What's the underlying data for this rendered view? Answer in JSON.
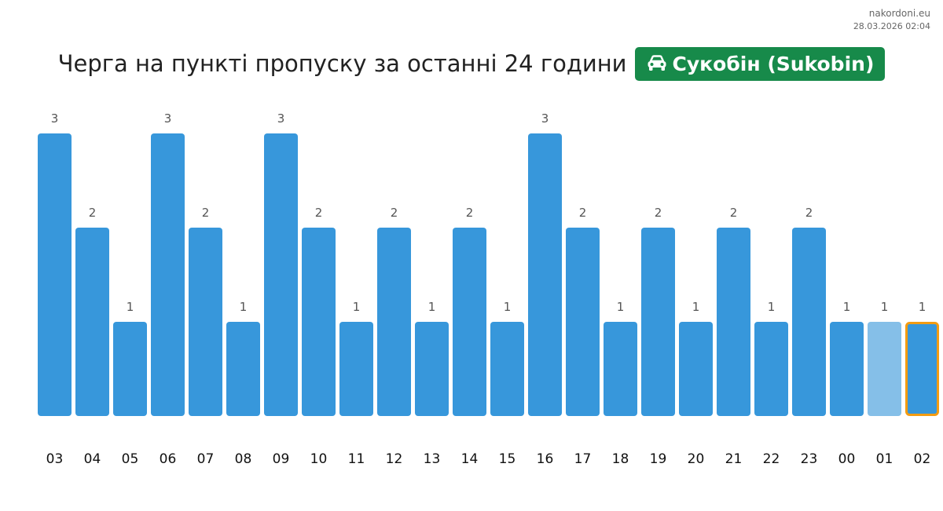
{
  "header": {
    "site": "nakordoni.eu",
    "timestamp": "28.03.2026 02:04",
    "title": "Черга на пункті пропуску за останні 24 години",
    "checkpoint": "Сукобін (Sukobin)",
    "checkpoint_icon": "car-icon"
  },
  "colors": {
    "bar": "#3797db",
    "bar_light": "#85bfe8",
    "highlight_border": "#f39c12",
    "badge": "#178a4a",
    "value_label": "#555555",
    "tick_label": "#111111"
  },
  "chart_data": {
    "type": "bar",
    "categories": [
      "03",
      "04",
      "05",
      "06",
      "07",
      "08",
      "09",
      "10",
      "11",
      "12",
      "13",
      "14",
      "15",
      "16",
      "17",
      "18",
      "19",
      "20",
      "21",
      "22",
      "23",
      "00",
      "01",
      "02"
    ],
    "values": [
      3,
      2,
      1,
      3,
      2,
      1,
      3,
      2,
      1,
      2,
      1,
      2,
      1,
      3,
      2,
      1,
      2,
      1,
      2,
      1,
      2,
      1,
      1,
      1
    ],
    "light_category": "01",
    "highlighted_category": "02",
    "title": "Черга на пункті пропуску за останні 24 години",
    "xlabel": "",
    "ylabel": "",
    "ylim": [
      0,
      3
    ],
    "grid": false,
    "legend": "none",
    "data_labels": true
  }
}
